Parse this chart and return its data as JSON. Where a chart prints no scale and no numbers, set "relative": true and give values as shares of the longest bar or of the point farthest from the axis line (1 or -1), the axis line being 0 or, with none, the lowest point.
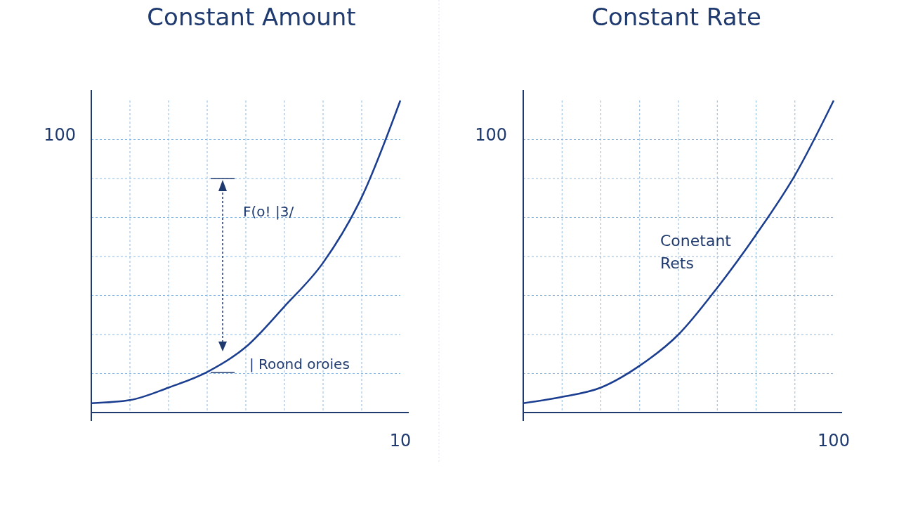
{
  "chart_data": [
    {
      "type": "line",
      "title": "Constant Amount",
      "relative": true,
      "grid": true,
      "categories": [
        null,
        null,
        null,
        null,
        null,
        null,
        null,
        null,
        null
      ],
      "series": [
        {
          "color": "#1a3d8f",
          "values": [
            0.03,
            0.04,
            0.08,
            0.13,
            0.21,
            0.34,
            0.48,
            0.69,
            1
          ]
        }
      ],
      "annotations": [
        "100",
        "10",
        "F(o! |3/",
        "| Roond oroies"
      ]
    },
    {
      "type": "line",
      "title": "Constant Rate",
      "relative": true,
      "grid": true,
      "categories": [
        null,
        null,
        null,
        null,
        null,
        null,
        null,
        null,
        null
      ],
      "series": [
        {
          "color": "#1a3d8f",
          "values": [
            0.03,
            0.05,
            0.08,
            0.15,
            0.25,
            0.4,
            0.57,
            0.76,
            1
          ]
        }
      ],
      "annotations": [
        "100",
        "100",
        "Conetant Rets"
      ]
    }
  ]
}
